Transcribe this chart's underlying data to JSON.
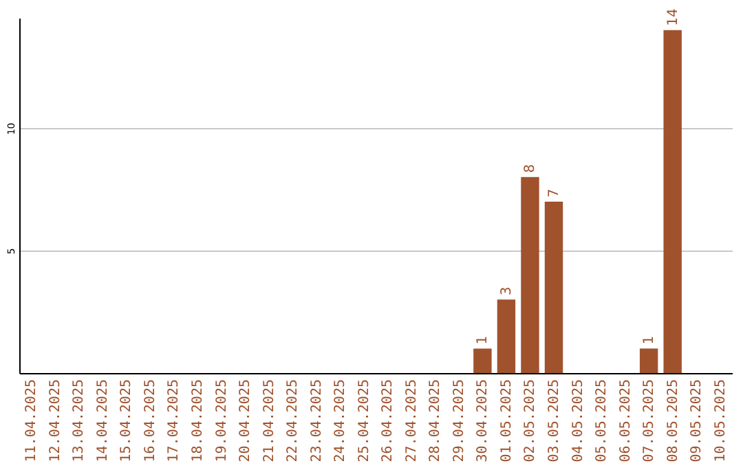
{
  "chart_data": {
    "type": "bar",
    "categories": [
      "11.04.2025",
      "12.04.2025",
      "13.04.2025",
      "14.04.2025",
      "15.04.2025",
      "16.04.2025",
      "17.04.2025",
      "18.04.2025",
      "19.04.2025",
      "20.04.2025",
      "21.04.2025",
      "22.04.2025",
      "23.04.2025",
      "24.04.2025",
      "25.04.2025",
      "26.04.2025",
      "27.04.2025",
      "28.04.2025",
      "29.04.2025",
      "30.04.2025",
      "01.05.2025",
      "02.05.2025",
      "03.05.2025",
      "04.05.2025",
      "05.05.2025",
      "06.05.2025",
      "07.05.2025",
      "08.05.2025",
      "09.05.2025",
      "10.05.2025"
    ],
    "values": [
      0,
      0,
      0,
      0,
      0,
      0,
      0,
      0,
      0,
      0,
      0,
      0,
      0,
      0,
      0,
      0,
      0,
      0,
      0,
      1,
      3,
      8,
      7,
      0,
      0,
      0,
      1,
      14,
      0,
      0
    ],
    "value_labels": [
      null,
      null,
      null,
      null,
      null,
      null,
      null,
      null,
      null,
      null,
      null,
      null,
      null,
      null,
      null,
      null,
      null,
      null,
      null,
      "1",
      "3",
      "8",
      "7",
      null,
      null,
      null,
      "1",
      "14",
      null,
      null
    ],
    "color": "#a0522d",
    "ylim": [
      0,
      14.5
    ],
    "yticks": [
      5,
      10
    ],
    "grid": "y"
  }
}
